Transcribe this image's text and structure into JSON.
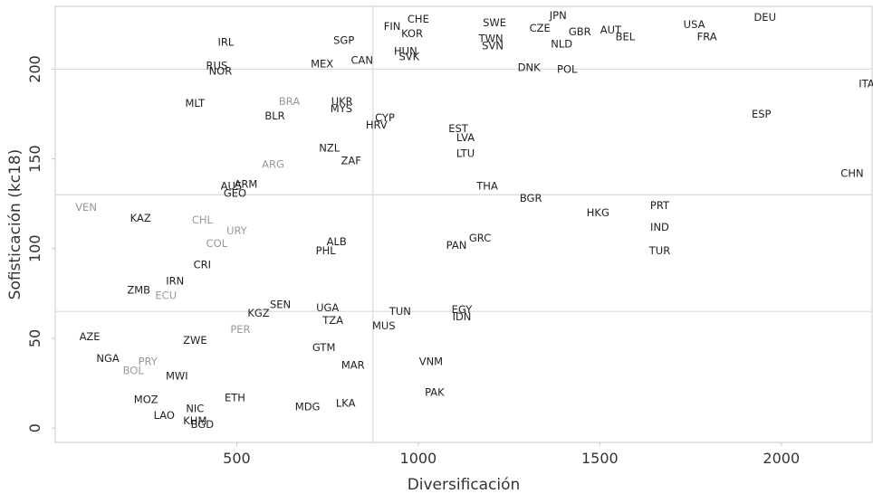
{
  "chart_data": {
    "type": "scatter",
    "title": "",
    "xlabel": "Diversificación",
    "ylabel": "Sofisticación (kc18)",
    "xlim": [
      0,
      2250
    ],
    "ylim": [
      -8,
      235
    ],
    "xticks": [
      500,
      1000,
      1500,
      2000
    ],
    "yticks": [
      0,
      50,
      100,
      150,
      200
    ],
    "xtick_labels": [
      "500",
      "1000",
      "1500",
      "2000"
    ],
    "ytick_labels": [
      "0",
      "50",
      "100",
      "150",
      "200"
    ],
    "reference_lines": {
      "vertical": [
        875
      ],
      "horizontal": [
        200,
        130,
        65
      ]
    },
    "grid": false,
    "frame": true,
    "colors": {
      "default": "#1f1f1f",
      "highlight": "#999999",
      "reference_line": "#d9d9d9",
      "frame": "#c8c8c8"
    },
    "points": [
      {
        "label": "CHE",
        "x": 1000,
        "y": 228
      },
      {
        "label": "FIN",
        "x": 928,
        "y": 224
      },
      {
        "label": "KOR",
        "x": 983,
        "y": 220
      },
      {
        "label": "SWE",
        "x": 1210,
        "y": 226
      },
      {
        "label": "JPN",
        "x": 1385,
        "y": 230
      },
      {
        "label": "CZE",
        "x": 1335,
        "y": 223
      },
      {
        "label": "GBR",
        "x": 1445,
        "y": 221
      },
      {
        "label": "AUT",
        "x": 1530,
        "y": 222
      },
      {
        "label": "BEL",
        "x": 1570,
        "y": 218
      },
      {
        "label": "USA",
        "x": 1760,
        "y": 225
      },
      {
        "label": "FRA",
        "x": 1795,
        "y": 218
      },
      {
        "label": "DEU",
        "x": 1955,
        "y": 229
      },
      {
        "label": "TWN",
        "x": 1200,
        "y": 217
      },
      {
        "label": "SVN",
        "x": 1205,
        "y": 213
      },
      {
        "label": "NLD",
        "x": 1395,
        "y": 214
      },
      {
        "label": "IRL",
        "x": 470,
        "y": 215
      },
      {
        "label": "SGP",
        "x": 795,
        "y": 216
      },
      {
        "label": "HUN",
        "x": 965,
        "y": 210
      },
      {
        "label": "SVK",
        "x": 975,
        "y": 207
      },
      {
        "label": "CAN",
        "x": 845,
        "y": 205
      },
      {
        "label": "MEX",
        "x": 735,
        "y": 203
      },
      {
        "label": "RUS",
        "x": 445,
        "y": 202
      },
      {
        "label": "NOR",
        "x": 455,
        "y": 199
      },
      {
        "label": "DNK",
        "x": 1305,
        "y": 201
      },
      {
        "label": "POL",
        "x": 1410,
        "y": 200
      },
      {
        "label": "ITA",
        "x": 2235,
        "y": 192
      },
      {
        "label": "MLT",
        "x": 385,
        "y": 181
      },
      {
        "label": "BRA",
        "x": 645,
        "y": 182,
        "highlight": true
      },
      {
        "label": "UKR",
        "x": 790,
        "y": 182
      },
      {
        "label": "MYS",
        "x": 788,
        "y": 178
      },
      {
        "label": "BLR",
        "x": 605,
        "y": 174
      },
      {
        "label": "CYP",
        "x": 908,
        "y": 173
      },
      {
        "label": "HRV",
        "x": 885,
        "y": 169
      },
      {
        "label": "ESP",
        "x": 1945,
        "y": 175
      },
      {
        "label": "EST",
        "x": 1110,
        "y": 167
      },
      {
        "label": "LVA",
        "x": 1130,
        "y": 162
      },
      {
        "label": "LTU",
        "x": 1130,
        "y": 153
      },
      {
        "label": "NZL",
        "x": 755,
        "y": 156
      },
      {
        "label": "ZAF",
        "x": 815,
        "y": 149
      },
      {
        "label": "ARG",
        "x": 600,
        "y": 147,
        "highlight": true
      },
      {
        "label": "CHN",
        "x": 2195,
        "y": 142
      },
      {
        "label": "ARM",
        "x": 525,
        "y": 136
      },
      {
        "label": "AUS",
        "x": 485,
        "y": 135
      },
      {
        "label": "GEO",
        "x": 495,
        "y": 131
      },
      {
        "label": "THA",
        "x": 1190,
        "y": 135
      },
      {
        "label": "BGR",
        "x": 1310,
        "y": 128
      },
      {
        "label": "PRT",
        "x": 1665,
        "y": 124
      },
      {
        "label": "HKG",
        "x": 1495,
        "y": 120
      },
      {
        "label": "VEN",
        "x": 85,
        "y": 123,
        "highlight": true
      },
      {
        "label": "KAZ",
        "x": 235,
        "y": 117
      },
      {
        "label": "CHL",
        "x": 405,
        "y": 116,
        "highlight": true
      },
      {
        "label": "URY",
        "x": 500,
        "y": 110,
        "highlight": true
      },
      {
        "label": "IND",
        "x": 1665,
        "y": 112
      },
      {
        "label": "COL",
        "x": 445,
        "y": 103,
        "highlight": true
      },
      {
        "label": "ALB",
        "x": 775,
        "y": 104
      },
      {
        "label": "GRC",
        "x": 1170,
        "y": 106
      },
      {
        "label": "PHL",
        "x": 745,
        "y": 99
      },
      {
        "label": "PAN",
        "x": 1105,
        "y": 102
      },
      {
        "label": "TUR",
        "x": 1665,
        "y": 99
      },
      {
        "label": "CRI",
        "x": 405,
        "y": 91
      },
      {
        "label": "IRN",
        "x": 330,
        "y": 82
      },
      {
        "label": "ZMB",
        "x": 230,
        "y": 77
      },
      {
        "label": "ECU",
        "x": 305,
        "y": 74,
        "highlight": true
      },
      {
        "label": "SEN",
        "x": 620,
        "y": 69
      },
      {
        "label": "UGA",
        "x": 750,
        "y": 67
      },
      {
        "label": "KGZ",
        "x": 560,
        "y": 64
      },
      {
        "label": "TUN",
        "x": 950,
        "y": 65
      },
      {
        "label": "EGY",
        "x": 1120,
        "y": 66
      },
      {
        "label": "IDN",
        "x": 1120,
        "y": 62
      },
      {
        "label": "TZA",
        "x": 765,
        "y": 60
      },
      {
        "label": "MUS",
        "x": 905,
        "y": 57
      },
      {
        "label": "PER",
        "x": 510,
        "y": 55,
        "highlight": true
      },
      {
        "label": "AZE",
        "x": 95,
        "y": 51
      },
      {
        "label": "ZWE",
        "x": 385,
        "y": 49
      },
      {
        "label": "GTM",
        "x": 740,
        "y": 45
      },
      {
        "label": "NGA",
        "x": 145,
        "y": 39
      },
      {
        "label": "VNM",
        "x": 1035,
        "y": 37
      },
      {
        "label": "PRY",
        "x": 255,
        "y": 37,
        "highlight": true
      },
      {
        "label": "BOL",
        "x": 215,
        "y": 32,
        "highlight": true
      },
      {
        "label": "MAR",
        "x": 820,
        "y": 35
      },
      {
        "label": "MWI",
        "x": 335,
        "y": 29
      },
      {
        "label": "PAK",
        "x": 1045,
        "y": 20
      },
      {
        "label": "MOZ",
        "x": 250,
        "y": 16
      },
      {
        "label": "ETH",
        "x": 495,
        "y": 17
      },
      {
        "label": "LKA",
        "x": 800,
        "y": 14
      },
      {
        "label": "MDG",
        "x": 695,
        "y": 12
      },
      {
        "label": "NIC",
        "x": 385,
        "y": 11
      },
      {
        "label": "LAO",
        "x": 300,
        "y": 7
      },
      {
        "label": "KHM",
        "x": 385,
        "y": 4
      },
      {
        "label": "BGD",
        "x": 405,
        "y": 2
      }
    ]
  }
}
